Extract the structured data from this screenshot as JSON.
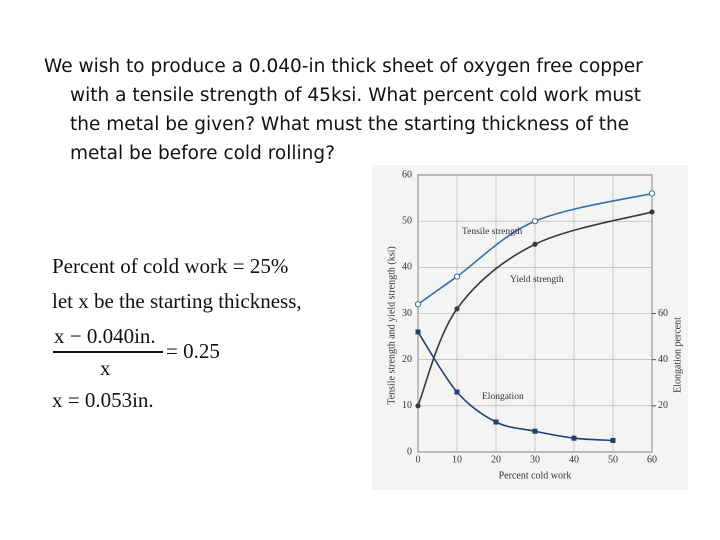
{
  "question": [
    "We wish to produce a 0.040-in thick sheet of oxygen free copper",
    "with a tensile strength of 45ksi.  What percent cold work must",
    "the metal be given?  What must the starting thickness of the",
    "metal be before cold rolling?"
  ],
  "solution": {
    "line1": "Percent of cold work = 25%",
    "line2": "let x be the starting thickness,",
    "numerator": "x − 0.040in.",
    "denominator": "x",
    "equals": "= 0.25",
    "result": "x = 0.053in."
  },
  "chart_data": {
    "type": "line",
    "ylabel": "Tensile strength and yield strength (ksi)",
    "y2label": "Elongation percent",
    "xlabel": "Percent cold work",
    "xlim": [
      0,
      60
    ],
    "xticks": [
      0,
      10,
      20,
      30,
      40,
      50,
      60
    ],
    "ylim": [
      0,
      60
    ],
    "yticks": [
      0,
      10,
      20,
      30,
      40,
      50,
      60
    ],
    "y2lim": [
      0,
      120
    ],
    "y2ticks": [
      20,
      40,
      60
    ],
    "grid": true,
    "series": [
      {
        "name": "Tensile strength",
        "color": "#2f6db5",
        "x": [
          0,
          10,
          30,
          60
        ],
        "values": [
          32,
          38,
          50,
          56
        ]
      },
      {
        "name": "Yield strength",
        "color": "#3a3a3a",
        "x": [
          0,
          10,
          30,
          60
        ],
        "values": [
          10,
          31,
          45,
          52
        ]
      },
      {
        "name": "Elongation",
        "color": "#1f3f7a",
        "axis": "y2",
        "x": [
          0,
          10,
          20,
          30,
          40,
          50
        ],
        "values": [
          52,
          26,
          13,
          9,
          6,
          5
        ]
      }
    ]
  }
}
